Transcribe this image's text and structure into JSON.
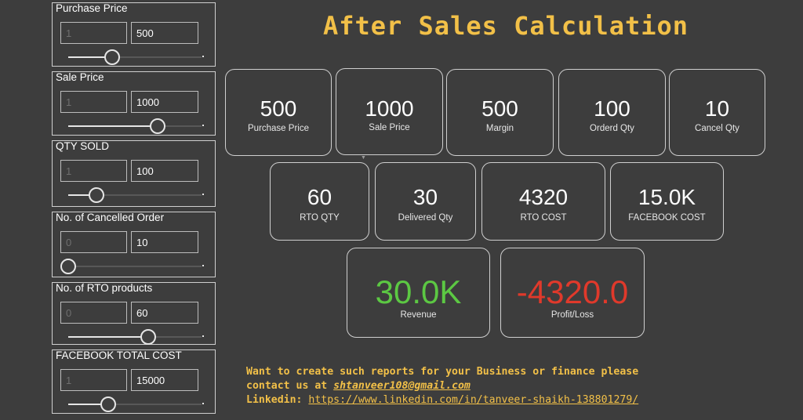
{
  "title": "After Sales Calculation",
  "controls": [
    {
      "label": "Purchase Price",
      "min": "1",
      "value": "500",
      "pos": 0.33
    },
    {
      "label": "Sale Price",
      "min": "1",
      "value": "1000",
      "pos": 0.67
    },
    {
      "label": "QTY SOLD",
      "min": "1",
      "value": "100",
      "pos": 0.21
    },
    {
      "label": "No. of Cancelled Order",
      "min": "0",
      "value": "10",
      "pos": 0.0
    },
    {
      "label": "No. of RTO products",
      "min": "0",
      "value": "60",
      "pos": 0.6
    },
    {
      "label": "FACEBOOK TOTAL COST",
      "min": "1",
      "value": "15000",
      "pos": 0.3
    }
  ],
  "metrics": {
    "purchase_price": {
      "value": "500",
      "label": "Purchase Price"
    },
    "sale_price": {
      "value": "1000",
      "label": "Sale Price"
    },
    "margin": {
      "value": "500",
      "label": "Margin"
    },
    "ordered_qty": {
      "value": "100",
      "label": "Orderd Qty"
    },
    "cancel_qty": {
      "value": "10",
      "label": "Cancel Qty"
    },
    "rto_qty": {
      "value": "60",
      "label": "RTO QTY"
    },
    "delivered_qty": {
      "value": "30",
      "label": "Delivered Qty"
    },
    "rto_cost": {
      "value": "4320",
      "label": "RTO COST"
    },
    "facebook_cost": {
      "value": "15.0K",
      "label": "FACEBOOK COST"
    },
    "revenue": {
      "value": "30.0K",
      "label": "Revenue"
    },
    "profit_loss": {
      "value": "-4320.0",
      "label": "Profit/Loss"
    }
  },
  "colors": {
    "accent": "#f2c048",
    "positive": "#5cc843",
    "negative": "#e0392b"
  },
  "footer": {
    "line1": "Want to create such reports for your Business or finance please",
    "line2_prefix": "contact us at ",
    "email": "shtanveer108@gmail.com",
    "line3_prefix": "Linkedin: ",
    "link": "https://www.linkedin.com/in/tanveer-shaikh-138801279/"
  }
}
